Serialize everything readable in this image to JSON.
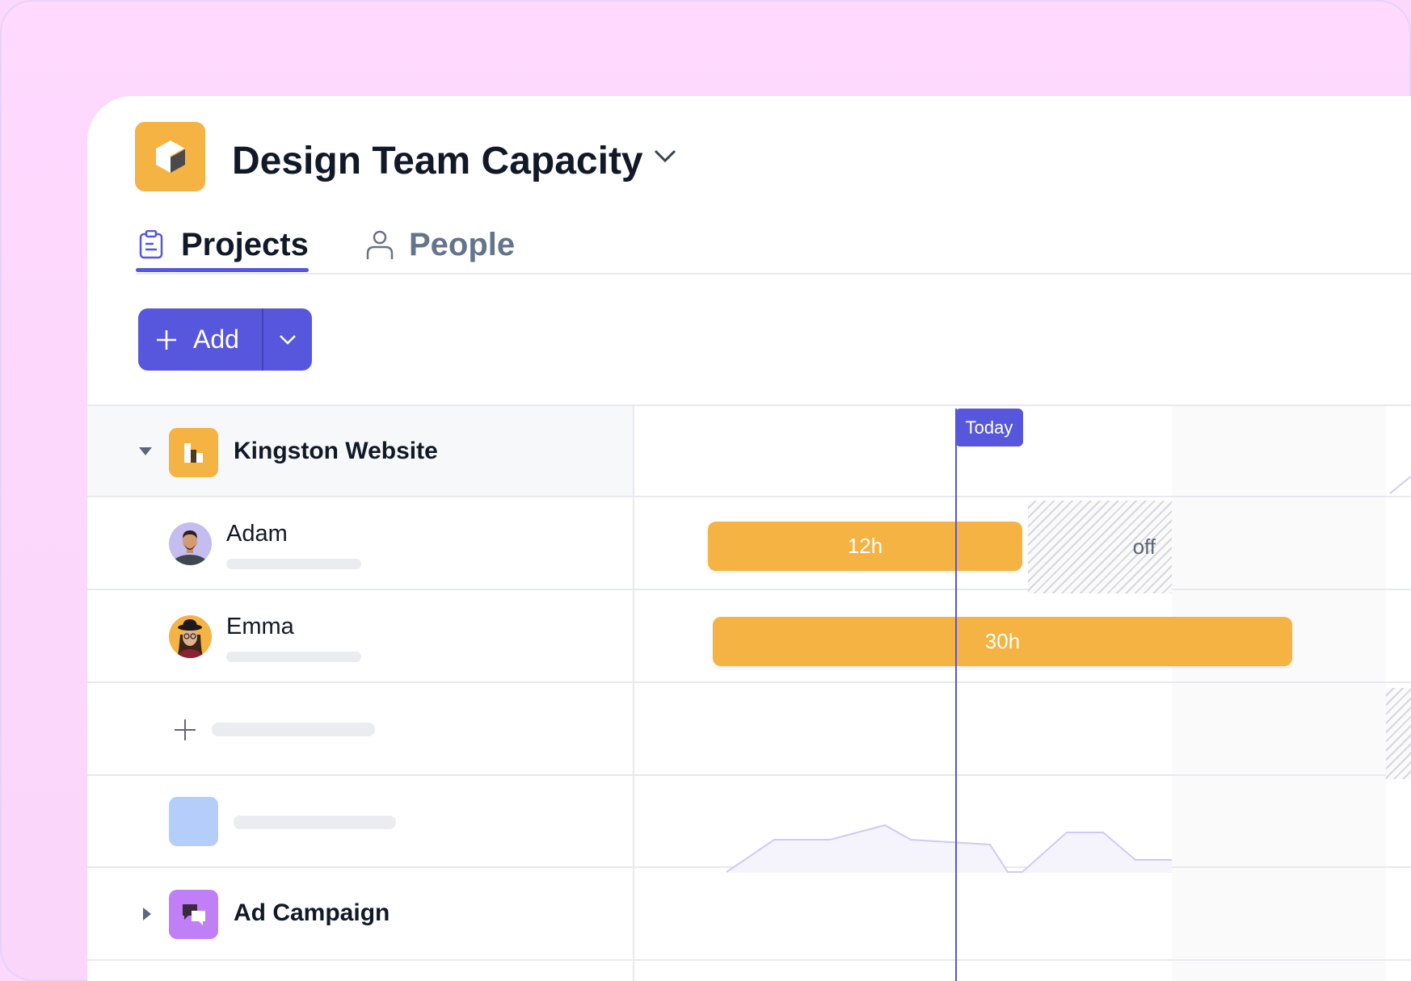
{
  "header": {
    "title": "Design Team Capacity"
  },
  "tabs": [
    {
      "label": "Projects",
      "active": true
    },
    {
      "label": "People",
      "active": false
    }
  ],
  "toolbar": {
    "add_label": "Add"
  },
  "timeline": {
    "today_label": "Today",
    "off_label": "off"
  },
  "projects": [
    {
      "name": "Kingston Website",
      "expanded": true,
      "color": "#f4b343",
      "people": [
        {
          "name": "Adam",
          "hours": "12h"
        },
        {
          "name": "Emma",
          "hours": "30h"
        }
      ]
    },
    {
      "name": "Ad Campaign",
      "expanded": false,
      "color": "#c07ef7"
    }
  ],
  "colors": {
    "accent": "#5757de",
    "allocation": "#f4b343"
  }
}
